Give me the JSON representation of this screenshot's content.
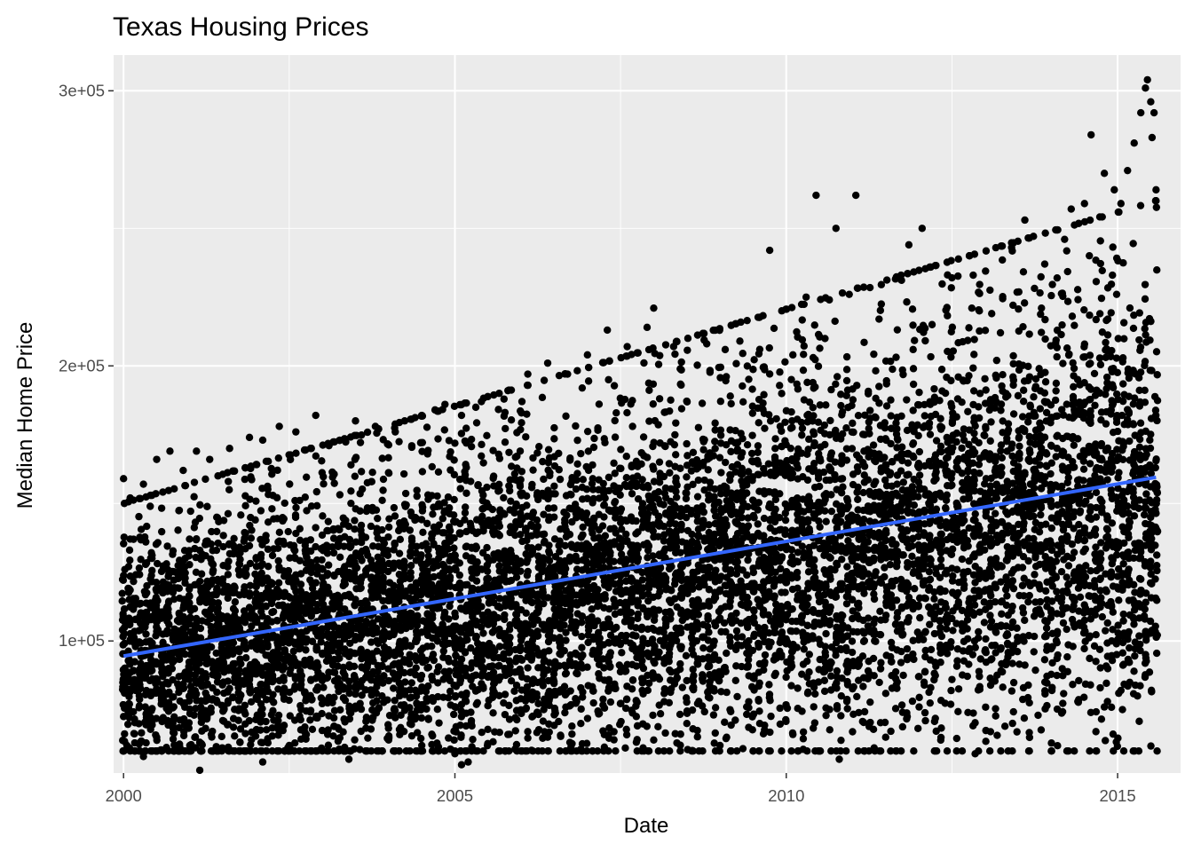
{
  "chart_data": {
    "type": "scatter",
    "title": "Texas Housing Prices",
    "xlabel": "Date",
    "ylabel": "Median Home Price",
    "xlim": [
      1999.85,
      2015.95
    ],
    "ylim": [
      52000,
      313000
    ],
    "x_ticks": [
      2000,
      2005,
      2010,
      2015
    ],
    "x_tick_labels": [
      "2000",
      "2005",
      "2010",
      "2015"
    ],
    "y_ticks": [
      100000,
      200000,
      300000
    ],
    "y_tick_labels": [
      "1e+05",
      "2e+05",
      "3e+05"
    ],
    "grid": true,
    "legend": "none",
    "point_color": "#000000",
    "trend_color": "#3366ff",
    "panel_color": "#ebebeb",
    "grid_color": "#ffffff",
    "series": [
      {
        "kind": "points",
        "description_density": "dense monthly observations from 2000.0 to 2015.58, bulk 70k-170k rising over time",
        "points": [
          [
            2000.0,
            159000
          ],
          [
            2000.1,
            152000
          ],
          [
            2000.3,
            157000
          ],
          [
            2000.5,
            166000
          ],
          [
            2000.7,
            169000
          ],
          [
            2000.9,
            162000
          ],
          [
            2001.1,
            169000
          ],
          [
            2001.3,
            166000
          ],
          [
            2001.6,
            170000
          ],
          [
            2001.9,
            174000
          ],
          [
            2002.1,
            173000
          ],
          [
            2002.35,
            178000
          ],
          [
            2002.6,
            176000
          ],
          [
            2002.9,
            182000
          ],
          [
            2003.1,
            171000
          ],
          [
            2003.5,
            180000
          ],
          [
            2003.8,
            178000
          ],
          [
            2004.1,
            176000
          ],
          [
            2004.5,
            182000
          ],
          [
            2004.7,
            184000
          ],
          [
            2004.85,
            186000
          ],
          [
            2005.1,
            182000
          ],
          [
            2005.4,
            187000
          ],
          [
            2005.8,
            191000
          ],
          [
            2006.1,
            197000
          ],
          [
            2006.4,
            201000
          ],
          [
            2006.7,
            197000
          ],
          [
            2007.0,
            204000
          ],
          [
            2007.3,
            213000
          ],
          [
            2007.6,
            207000
          ],
          [
            2007.9,
            214000
          ],
          [
            2008.0,
            221000
          ],
          [
            2008.3,
            207000
          ],
          [
            2008.8,
            208000
          ],
          [
            2009.3,
            209000
          ],
          [
            2009.6,
            206000
          ],
          [
            2009.75,
            242000
          ],
          [
            2010.1,
            204000
          ],
          [
            2010.3,
            225000
          ],
          [
            2010.45,
            262000
          ],
          [
            2010.65,
            224000
          ],
          [
            2010.75,
            250000
          ],
          [
            2010.95,
            226000
          ],
          [
            2011.05,
            262000
          ],
          [
            2011.4,
            217000
          ],
          [
            2011.85,
            244000
          ],
          [
            2012.05,
            250000
          ],
          [
            2012.2,
            215000
          ],
          [
            2012.5,
            232000
          ],
          [
            2012.8,
            221000
          ],
          [
            2013.1,
            219000
          ],
          [
            2013.4,
            243000
          ],
          [
            2013.6,
            253000
          ],
          [
            2013.9,
            237000
          ],
          [
            2014.2,
            246000
          ],
          [
            2014.3,
            257000
          ],
          [
            2014.5,
            259000
          ],
          [
            2014.6,
            284000
          ],
          [
            2014.8,
            270000
          ],
          [
            2014.95,
            264000
          ],
          [
            2015.05,
            259000
          ],
          [
            2015.15,
            271000
          ],
          [
            2015.25,
            281000
          ],
          [
            2015.35,
            292000
          ],
          [
            2015.42,
            301000
          ],
          [
            2015.45,
            304000
          ],
          [
            2015.5,
            296000
          ],
          [
            2015.52,
            283000
          ],
          [
            2015.55,
            292000
          ],
          [
            2015.58,
            264000
          ],
          [
            2000.05,
            62000
          ],
          [
            2000.3,
            58000
          ],
          [
            2000.5,
            65000
          ],
          [
            2001.0,
            62000
          ],
          [
            2001.15,
            53000
          ],
          [
            2001.5,
            61000
          ],
          [
            2002.1,
            56000
          ],
          [
            2002.5,
            62000
          ],
          [
            2003.0,
            60000
          ],
          [
            2003.4,
            57000
          ],
          [
            2004.0,
            64000
          ],
          [
            2004.5,
            62000
          ],
          [
            2005.0,
            59000
          ],
          [
            2005.1,
            55000
          ],
          [
            2005.2,
            56000
          ],
          [
            2005.8,
            66000
          ],
          [
            2006.4,
            65000
          ],
          [
            2006.9,
            70000
          ],
          [
            2007.4,
            67000
          ],
          [
            2008.0,
            64000
          ],
          [
            2008.5,
            70000
          ],
          [
            2009.0,
            62000
          ],
          [
            2009.1,
            65000
          ],
          [
            2009.6,
            70000
          ],
          [
            2010.1,
            66000
          ],
          [
            2010.8,
            57000
          ],
          [
            2011.0,
            67000
          ],
          [
            2011.5,
            65000
          ],
          [
            2012.1,
            71000
          ],
          [
            2012.85,
            59000
          ],
          [
            2013.3,
            69000
          ],
          [
            2013.8,
            73000
          ],
          [
            2014.4,
            78000
          ],
          [
            2014.8,
            76000
          ],
          [
            2015.05,
            82000
          ],
          [
            2015.3,
            80000
          ]
        ]
      },
      {
        "kind": "trend",
        "name": "",
        "x": [
          2000.0,
          2015.58
        ],
        "y": [
          94500,
          159500
        ]
      }
    ]
  }
}
